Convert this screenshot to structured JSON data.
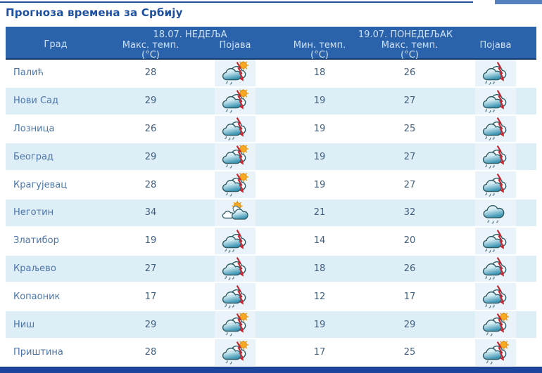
{
  "page": {
    "title": "Прогноза времена за Србију"
  },
  "table": {
    "day_groups": [
      {
        "label": "18.07. НЕДЕЉА"
      },
      {
        "label": "19.07. ПОНЕДЕЉАК"
      }
    ],
    "columns": {
      "city": "Град",
      "max_temp": "Макс. темп.",
      "min_temp": "Мин. темп.",
      "unit": "(°C)",
      "phenomenon": "Појава"
    },
    "rows": [
      {
        "city": "Палић",
        "sun_max": "28",
        "sun_icon": "cloud-sun-thunderstorm",
        "mon_min": "18",
        "mon_max": "26",
        "mon_icon": "cloud-thunderstorm"
      },
      {
        "city": "Нови Сад",
        "sun_max": "29",
        "sun_icon": "cloud-sun-thunderstorm",
        "mon_min": "19",
        "mon_max": "27",
        "mon_icon": "cloud-thunderstorm"
      },
      {
        "city": "Лозница",
        "sun_max": "26",
        "sun_icon": "cloud-thunderstorm",
        "mon_min": "19",
        "mon_max": "25",
        "mon_icon": "cloud-thunderstorm"
      },
      {
        "city": "Београд",
        "sun_max": "29",
        "sun_icon": "cloud-sun-thunderstorm",
        "mon_min": "19",
        "mon_max": "27",
        "mon_icon": "cloud-thunderstorm"
      },
      {
        "city": "Крагујевац",
        "sun_max": "28",
        "sun_icon": "cloud-sun-thunderstorm",
        "mon_min": "19",
        "mon_max": "27",
        "mon_icon": "cloud-thunderstorm"
      },
      {
        "city": "Неготин",
        "sun_max": "34",
        "sun_icon": "sun-clouds",
        "mon_min": "21",
        "mon_max": "32",
        "mon_icon": "cloud-rain"
      },
      {
        "city": "Златибор",
        "sun_max": "19",
        "sun_icon": "cloud-thunderstorm",
        "mon_min": "14",
        "mon_max": "20",
        "mon_icon": "cloud-thunderstorm"
      },
      {
        "city": "Краљево",
        "sun_max": "27",
        "sun_icon": "cloud-thunderstorm",
        "mon_min": "18",
        "mon_max": "26",
        "mon_icon": "cloud-thunderstorm"
      },
      {
        "city": "Копаоник",
        "sun_max": "17",
        "sun_icon": "cloud-thunderstorm",
        "mon_min": "12",
        "mon_max": "17",
        "mon_icon": "cloud-thunderstorm"
      },
      {
        "city": "Ниш",
        "sun_max": "29",
        "sun_icon": "cloud-sun-thunderstorm",
        "mon_min": "19",
        "mon_max": "29",
        "mon_icon": "cloud-sun-thunderstorm"
      },
      {
        "city": "Приштина",
        "sun_max": "28",
        "sun_icon": "cloud-sun-thunderstorm",
        "mon_min": "17",
        "mon_max": "25",
        "mon_icon": "cloud-sun-thunderstorm"
      }
    ]
  },
  "colors": {
    "header_bg": "#2A63AC",
    "header_text": "#CDE0F1",
    "alt_row_bg": "#DEEEF7",
    "icon_cell_bg": "#E9F3F9",
    "city_text": "#4B75A9",
    "temp_text": "#415F7E",
    "title_text": "#1D4FA1",
    "footer_bar": "#1E459E",
    "lightning_red": "#C42531",
    "sun_orange": "#F7A823"
  }
}
